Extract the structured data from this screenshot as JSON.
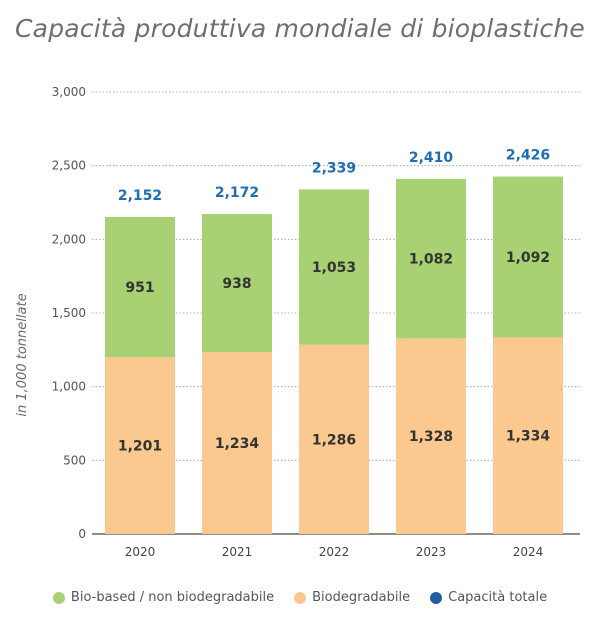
{
  "chart_data": {
    "type": "bar",
    "stacked": true,
    "title": "Capacità produttiva mondiale di bioplastiche",
    "ylabel": "in 1,000 tonnellate",
    "xlabel": "",
    "categories": [
      "2020",
      "2021",
      "2022",
      "2023",
      "2024"
    ],
    "series": [
      {
        "name": "Biodegradabile",
        "color": "#fbc98f",
        "values": [
          1201,
          1234,
          1286,
          1328,
          1334
        ],
        "labels": [
          "1,201",
          "1,234",
          "1,286",
          "1,328",
          "1,334"
        ]
      },
      {
        "name": "Bio-based / non biodegradabile",
        "color": "#a8d174",
        "values": [
          951,
          938,
          1053,
          1082,
          1092
        ],
        "labels": [
          "951",
          "938",
          "1,053",
          "1,082",
          "1,092"
        ]
      }
    ],
    "totals": {
      "name": "Capacità totale",
      "color": "#1f6db3",
      "values": [
        2152,
        2172,
        2339,
        2410,
        2426
      ],
      "labels": [
        "2,152",
        "2,172",
        "2,339",
        "2,410",
        "2,426"
      ]
    },
    "ylim": [
      0,
      3000
    ],
    "yticks": [
      0,
      500,
      1000,
      1500,
      2000,
      2500,
      3000
    ],
    "ytick_labels": [
      "0",
      "500",
      "1,000",
      "1,500",
      "2,000",
      "2,500",
      "3,000"
    ],
    "grid": true,
    "legend_position": "bottom",
    "legend": [
      {
        "label": "Bio-based / non biodegradabile",
        "color": "#a8d174"
      },
      {
        "label": "Biodegradabile",
        "color": "#fbc98f"
      },
      {
        "label": "Capacità totale",
        "color": "#1f5fa6"
      }
    ]
  }
}
